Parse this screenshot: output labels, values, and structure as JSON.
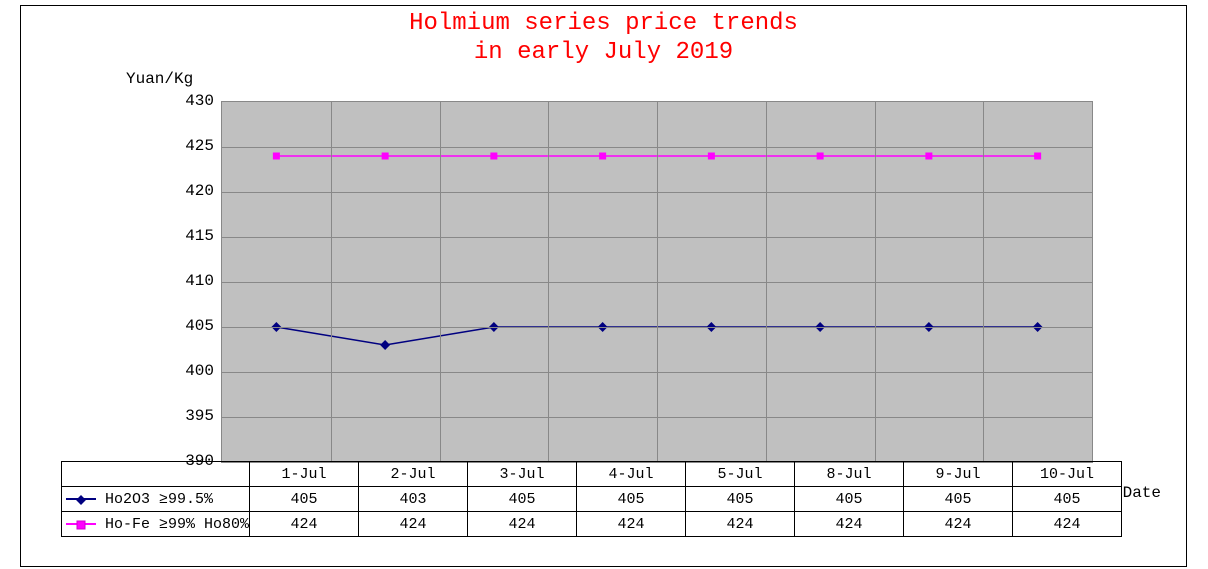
{
  "title_line1": "Holmium series price trends",
  "title_line2": "in early July 2019",
  "ylabel": "Yuan/Kg",
  "xlabel": "Date",
  "chart": {
    "type": "line",
    "background_color": "#c0c0c0",
    "grid_color": "#888888",
    "ylim": [
      390,
      430
    ],
    "ytick_step": 5,
    "yticks": [
      390,
      395,
      400,
      405,
      410,
      415,
      420,
      425,
      430
    ],
    "categories": [
      "1-Jul",
      "2-Jul",
      "3-Jul",
      "4-Jul",
      "5-Jul",
      "8-Jul",
      "9-Jul",
      "10-Jul"
    ],
    "series": [
      {
        "name": "Ho2O3 ≥99.5%",
        "label": "Ho2O3 ≥99.5%",
        "values": [
          405,
          403,
          405,
          405,
          405,
          405,
          405,
          405
        ],
        "color": "#000080",
        "marker": "diamond",
        "line_width": 1.5
      },
      {
        "name": "Ho-Fe ≥99% Ho80%",
        "label": "Ho-Fe ≥99% Ho80%",
        "values": [
          424,
          424,
          424,
          424,
          424,
          424,
          424,
          424
        ],
        "color": "#ff00ff",
        "marker": "square",
        "line_width": 1.5
      }
    ],
    "title_color": "#ff0000",
    "title_fontsize": 24,
    "axis_fontsize": 16,
    "font_family": "SimSun"
  }
}
